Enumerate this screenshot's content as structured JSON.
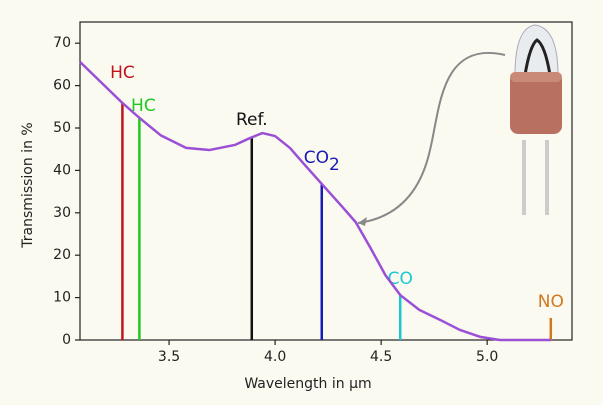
{
  "chart_data": {
    "type": "line",
    "xlabel": "Wavelength in µm",
    "ylabel": "Transmission in %",
    "xlim": [
      3.08,
      5.4
    ],
    "ylim": [
      0,
      75
    ],
    "xticks": [
      3.5,
      {
        "value": 4.0,
        "label": "4.0"
      },
      4.5,
      {
        "value": 5.0,
        "label": "5.0"
      }
    ],
    "yticks": [
      0,
      10,
      20,
      30,
      40,
      50,
      60,
      70
    ],
    "series": [
      {
        "color": "#9b4fd6",
        "x": [
          3.08,
          3.28,
          3.36,
          3.46,
          3.58,
          3.69,
          3.81,
          3.88,
          3.94,
          4.0,
          4.07,
          4.14,
          4.22,
          4.31,
          4.38,
          4.45,
          4.52,
          4.59,
          4.68,
          4.78,
          4.87,
          4.97,
          5.06,
          5.3
        ],
        "values": [
          65.6,
          55.9,
          52.4,
          48.3,
          45.3,
          44.8,
          46,
          47.6,
          48.8,
          48.1,
          45.3,
          41.3,
          36.8,
          31.8,
          27.8,
          21.7,
          15.3,
          10.6,
          7.1,
          4.7,
          2.4,
          0.7,
          0,
          0
        ]
      }
    ],
    "markers": [
      {
        "label": "HC",
        "x": 3.28,
        "value": 55.9,
        "color": "#c0141c"
      },
      {
        "label": "HC",
        "x": 3.36,
        "value": 52.4,
        "color": "#1ec81e"
      },
      {
        "label": "Ref.",
        "x": 3.89,
        "value": 47.6,
        "color": "#111111"
      },
      {
        "label": "CO",
        "subscript": "2",
        "x": 4.22,
        "value": 36.8,
        "color": "#1a1ab4"
      },
      {
        "label": "CO",
        "x": 4.59,
        "value": 10.6,
        "color": "#19c8d2"
      },
      {
        "label": "NO",
        "x": 5.3,
        "value": 5.2,
        "color": "#d2781e"
      }
    ]
  }
}
